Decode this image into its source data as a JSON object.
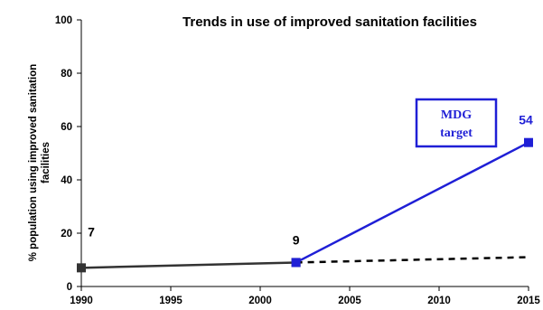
{
  "chart_data": {
    "type": "line",
    "title": "Trends in use of improved sanitation facilities",
    "ylabel_lines": [
      "% population using improved sanitation",
      "facilities"
    ],
    "xlabel": "",
    "x_ticks": [
      1990,
      1995,
      2000,
      2005,
      2010,
      2015
    ],
    "y_ticks": [
      0,
      20,
      40,
      60,
      80,
      100
    ],
    "xlim": [
      1990,
      2015
    ],
    "ylim": [
      0,
      100
    ],
    "grid": false,
    "series": [
      {
        "style": "solid",
        "color": "#333333",
        "marker": "square",
        "points": [
          {
            "x": 1990,
            "y": 7
          },
          {
            "x": 2002,
            "y": 9
          }
        ]
      },
      {
        "style": "dashed",
        "color": "#000000",
        "marker": "none",
        "points": [
          {
            "x": 2002,
            "y": 9
          },
          {
            "x": 2015,
            "y": 11
          }
        ]
      },
      {
        "style": "solid",
        "color": "#1f1fd6",
        "marker": "square",
        "points": [
          {
            "x": 2002,
            "y": 9
          },
          {
            "x": 2015,
            "y": 54
          }
        ]
      }
    ],
    "data_labels": [
      {
        "x": 1990,
        "y": 7,
        "text": "7",
        "color": "#000000"
      },
      {
        "x": 2002,
        "y": 9,
        "text": "9",
        "color": "#000000"
      },
      {
        "x": 2015,
        "y": 54,
        "text": "54",
        "color": "#1f1fd6"
      }
    ],
    "annotation": {
      "lines": [
        "MDG",
        "target"
      ],
      "color": "#1f1fd6"
    }
  }
}
